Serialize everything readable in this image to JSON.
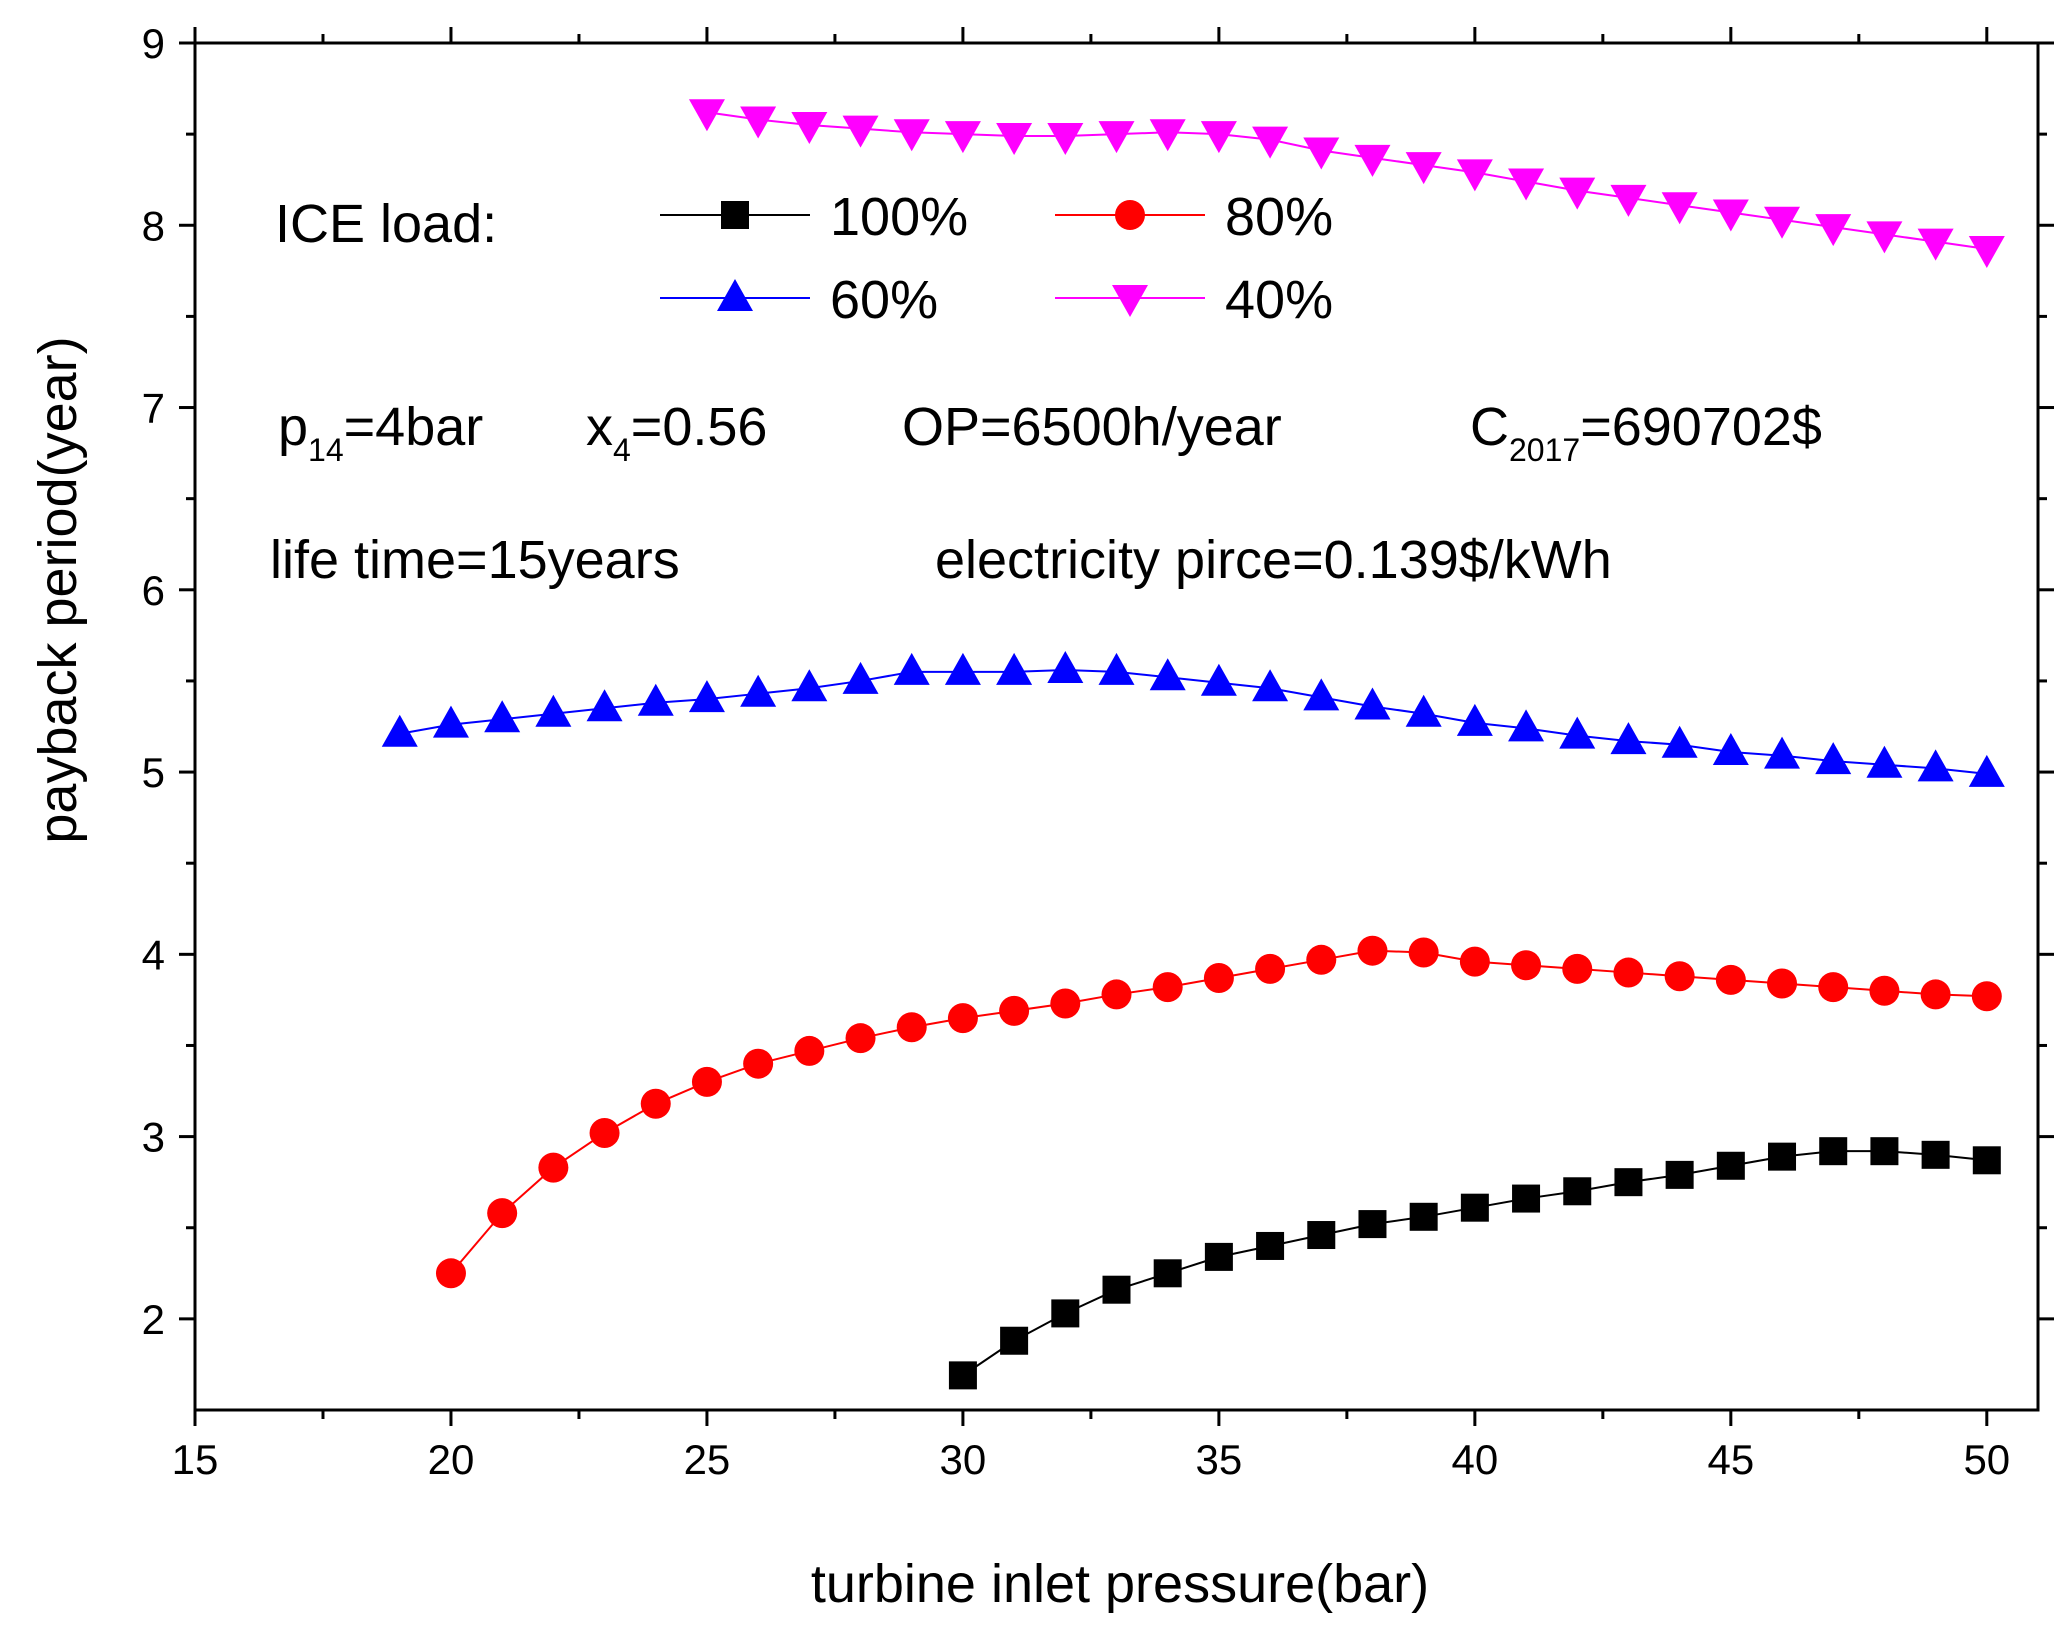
{
  "chart_data": {
    "type": "line",
    "xlabel": "turbine inlet pressure(bar)",
    "ylabel": "payback period(year)",
    "xlim": [
      15,
      51
    ],
    "ylim": [
      1.5,
      9
    ],
    "xticks": [
      15,
      20,
      25,
      30,
      35,
      40,
      45,
      50
    ],
    "yticks": [
      2,
      3,
      4,
      5,
      6,
      7,
      8,
      9
    ],
    "legend_title": "ICE load:",
    "legend_position": "top-center",
    "series": [
      {
        "name": "100%",
        "color": "#000000",
        "marker": "square",
        "x": [
          30,
          31,
          32,
          33,
          34,
          35,
          36,
          37,
          38,
          39,
          40,
          41,
          42,
          43,
          44,
          45,
          46,
          47,
          48,
          49,
          50
        ],
        "values": [
          1.69,
          1.88,
          2.03,
          2.16,
          2.25,
          2.34,
          2.4,
          2.46,
          2.52,
          2.56,
          2.61,
          2.66,
          2.7,
          2.75,
          2.79,
          2.84,
          2.89,
          2.92,
          2.92,
          2.9,
          2.87
        ]
      },
      {
        "name": "80%",
        "color": "#ff0000",
        "marker": "circle",
        "x": [
          20,
          21,
          22,
          23,
          24,
          25,
          26,
          27,
          28,
          29,
          30,
          31,
          32,
          33,
          34,
          35,
          36,
          37,
          38,
          39,
          40,
          41,
          42,
          43,
          44,
          45,
          46,
          47,
          48,
          49,
          50
        ],
        "values": [
          2.25,
          2.58,
          2.83,
          3.02,
          3.18,
          3.3,
          3.4,
          3.47,
          3.54,
          3.6,
          3.65,
          3.69,
          3.73,
          3.78,
          3.82,
          3.87,
          3.92,
          3.97,
          4.02,
          4.01,
          3.96,
          3.94,
          3.92,
          3.9,
          3.88,
          3.86,
          3.84,
          3.82,
          3.8,
          3.78,
          3.77
        ]
      },
      {
        "name": "60%",
        "color": "#0000ff",
        "marker": "triangle-up",
        "x": [
          19,
          20,
          21,
          22,
          23,
          24,
          25,
          26,
          27,
          28,
          29,
          30,
          31,
          32,
          33,
          34,
          35,
          36,
          37,
          38,
          39,
          40,
          41,
          42,
          43,
          44,
          45,
          46,
          47,
          48,
          49,
          50
        ],
        "values": [
          5.21,
          5.26,
          5.29,
          5.32,
          5.35,
          5.38,
          5.4,
          5.43,
          5.46,
          5.5,
          5.55,
          5.55,
          5.55,
          5.56,
          5.55,
          5.52,
          5.49,
          5.46,
          5.41,
          5.36,
          5.32,
          5.27,
          5.24,
          5.2,
          5.17,
          5.15,
          5.11,
          5.09,
          5.06,
          5.04,
          5.02,
          4.99
        ]
      },
      {
        "name": "40%",
        "color": "#ff00ff",
        "marker": "triangle-down",
        "x": [
          25,
          26,
          27,
          28,
          29,
          30,
          31,
          32,
          33,
          34,
          35,
          36,
          37,
          38,
          39,
          40,
          41,
          42,
          43,
          44,
          45,
          46,
          47,
          48,
          49,
          50
        ],
        "values": [
          8.62,
          8.58,
          8.55,
          8.53,
          8.51,
          8.5,
          8.49,
          8.49,
          8.5,
          8.51,
          8.5,
          8.47,
          8.41,
          8.37,
          8.33,
          8.29,
          8.24,
          8.19,
          8.15,
          8.11,
          8.07,
          8.03,
          7.99,
          7.95,
          7.91,
          7.87
        ]
      }
    ],
    "annotations": {
      "line1": [
        {
          "base": "p",
          "sub": "14",
          "rest": "=4bar"
        },
        {
          "base": "x",
          "sub": "4",
          "rest": "=0.56"
        },
        {
          "base": "OP=6500h/year",
          "sub": "",
          "rest": ""
        },
        {
          "base": "C",
          "sub": "2017",
          "rest": "=690702$"
        }
      ],
      "line2": [
        {
          "text": "life time=15years"
        },
        {
          "text": "electricity pirce=0.139$/kWh"
        }
      ]
    }
  }
}
